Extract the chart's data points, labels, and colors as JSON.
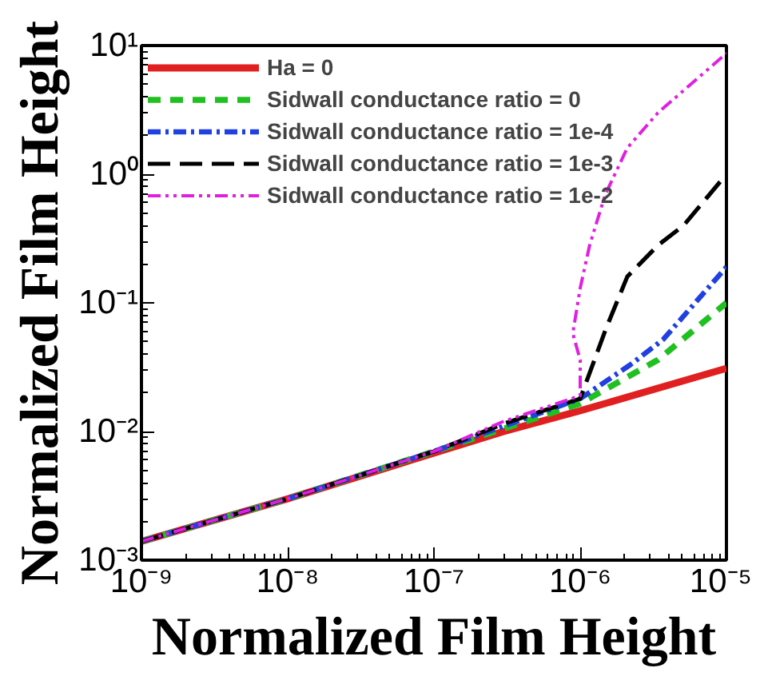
{
  "chart_data": {
    "type": "line",
    "xlabel": "Normalized Film Height",
    "ylabel": "Normalized Film Height",
    "log": "xy",
    "grid": false,
    "legend": "top left",
    "marker": "none",
    "xlim": [
      1e-09,
      1e-05
    ],
    "ylim": [
      0.001,
      10
    ],
    "xticks": [
      {
        "value": 1e-09,
        "label": "10⁻⁹"
      },
      {
        "value": 1e-08,
        "label": "10⁻⁸"
      },
      {
        "value": 1e-07,
        "label": "10⁻⁷"
      },
      {
        "value": 1e-06,
        "label": "10⁻⁶"
      },
      {
        "value": 1e-05,
        "label": "10⁻⁵"
      }
    ],
    "yticks": [
      {
        "value": 0.001,
        "label": "10⁻³"
      },
      {
        "value": 0.01,
        "label": "10⁻²"
      },
      {
        "value": 0.1,
        "label": "10⁻¹"
      },
      {
        "value": 1,
        "label": "10⁰"
      },
      {
        "value": 10,
        "label": "10¹"
      }
    ],
    "series": [
      {
        "name": "Ha = 0",
        "color": "#e02020",
        "line_style": "solid",
        "x": [
          1e-09,
          1e-08,
          1e-07,
          3e-07,
          1e-06,
          1e-05
        ],
        "values": [
          0.0014,
          0.003,
          0.0068,
          0.01,
          0.0145,
          0.031
        ]
      },
      {
        "name": "Sidwall conductance ratio = 0",
        "color": "#20c020",
        "line_style": "dashed",
        "x": [
          1e-09,
          1e-08,
          1e-07,
          3e-07,
          1e-06,
          3.4e-06,
          1e-05
        ],
        "values": [
          0.0014,
          0.003,
          0.007,
          0.0105,
          0.0165,
          0.036,
          0.1
        ]
      },
      {
        "name": "Sidwall conductance ratio = 1e-4",
        "color": "#2040e0",
        "line_style": "dashdot",
        "x": [
          1e-09,
          1e-08,
          1e-07,
          3e-07,
          1e-06,
          2.2e-06,
          3.7e-06,
          1e-05
        ],
        "values": [
          0.0014,
          0.003,
          0.007,
          0.011,
          0.018,
          0.033,
          0.052,
          0.19
        ]
      },
      {
        "name": "Sidwall conductance ratio = 1e-3",
        "color": "#000000",
        "line_style": "longdash",
        "x": [
          1e-09,
          1e-08,
          1e-07,
          3e-07,
          1e-06,
          1.5e-06,
          2.1e-06,
          3.4e-06,
          5.1e-06,
          1e-05
        ],
        "values": [
          0.0014,
          0.003,
          0.007,
          0.0115,
          0.018,
          0.063,
          0.16,
          0.28,
          0.4,
          1.0
        ]
      },
      {
        "name": "Sidwall conductance ratio = 1e-2",
        "color": "#e020e0",
        "line_style": "dashdotdot",
        "x": [
          1e-09,
          1e-08,
          1e-07,
          3e-07,
          1e-06,
          1e-06,
          8.9e-07,
          1e-06,
          1.16e-06,
          1.48e-06,
          2.1e-06,
          3.4e-06,
          1e-05
        ],
        "values": [
          0.0014,
          0.003,
          0.007,
          0.012,
          0.019,
          0.036,
          0.058,
          0.13,
          0.28,
          0.69,
          1.6,
          3.0,
          8.7
        ]
      }
    ]
  }
}
